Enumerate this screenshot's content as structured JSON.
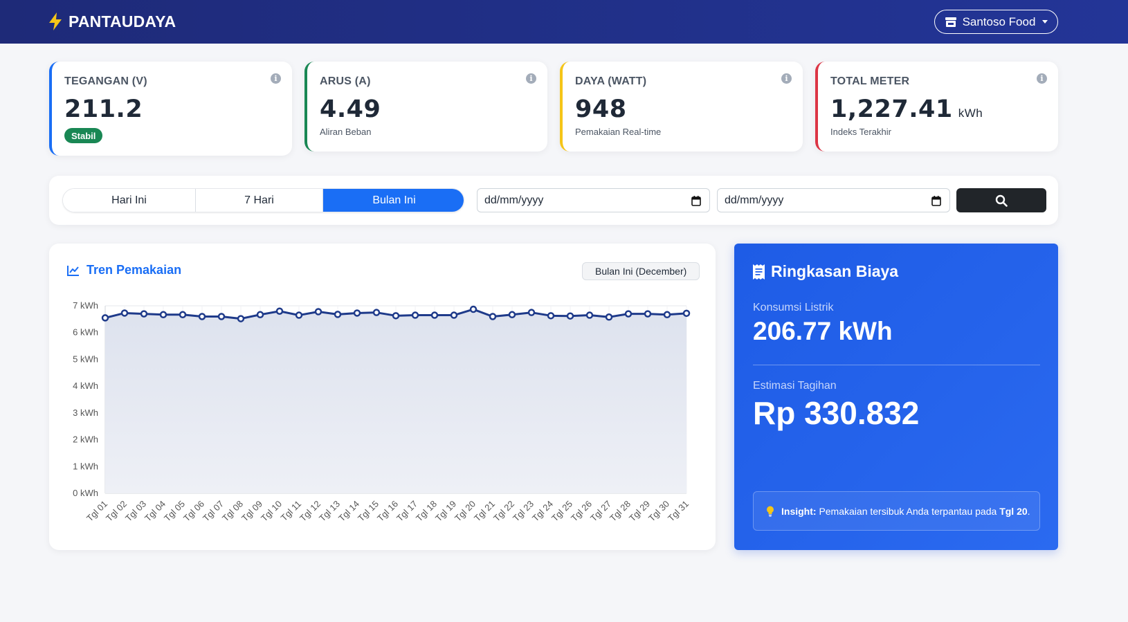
{
  "navbar": {
    "brand": "PANTAUDAYA",
    "brand_icon": "lightning-bolt-icon",
    "store_label": "Santoso Food",
    "store_icon": "store-icon"
  },
  "stats": [
    {
      "label": "TEGANGAN (V)",
      "value": "211.2",
      "badge": "Stabil",
      "accent": "#1a6ef5"
    },
    {
      "label": "ARUS (A)",
      "value": "4.49",
      "sub": "Aliran Beban",
      "accent": "#198754"
    },
    {
      "label": "DAYA (WATT)",
      "value": "948",
      "sub": "Pemakaian Real-time",
      "accent": "#f5c518"
    },
    {
      "label": "TOTAL METER",
      "value": "1,227.41",
      "unit": "kWh",
      "sub": "Indeks Terakhir",
      "accent": "#dc3545"
    }
  ],
  "info_glyph": "i",
  "filter": {
    "tabs": [
      "Hari Ini",
      "7 Hari",
      "Bulan Ini"
    ],
    "active_tab": "Bulan Ini",
    "start_date_placeholder": "dd/mm/yyyy",
    "end_date_placeholder": "dd/mm/yyyy",
    "search_icon": "search-icon"
  },
  "chart_card": {
    "title": "Tren Pemakaian",
    "period": "Bulan Ini (December)"
  },
  "chart_data": {
    "type": "area",
    "x": [
      "Tgl 01",
      "Tgl 02",
      "Tgl 03",
      "Tgl 04",
      "Tgl 05",
      "Tgl 06",
      "Tgl 07",
      "Tgl 08",
      "Tgl 09",
      "Tgl 10",
      "Tgl 11",
      "Tgl 12",
      "Tgl 13",
      "Tgl 14",
      "Tgl 15",
      "Tgl 16",
      "Tgl 17",
      "Tgl 18",
      "Tgl 19",
      "Tgl 20",
      "Tgl 21",
      "Tgl 22",
      "Tgl 23",
      "Tgl 24",
      "Tgl 25",
      "Tgl 26",
      "Tgl 27",
      "Tgl 28",
      "Tgl 29",
      "Tgl 30",
      "Tgl 31"
    ],
    "values": [
      6.55,
      6.73,
      6.7,
      6.67,
      6.67,
      6.6,
      6.6,
      6.52,
      6.67,
      6.8,
      6.65,
      6.78,
      6.68,
      6.73,
      6.75,
      6.63,
      6.65,
      6.65,
      6.65,
      6.87,
      6.6,
      6.67,
      6.75,
      6.63,
      6.62,
      6.65,
      6.58,
      6.7,
      6.7,
      6.67,
      6.72
    ],
    "yticks": [
      "0 kWh",
      "1 kWh",
      "2 kWh",
      "3 kWh",
      "4 kWh",
      "5 kWh",
      "6 kWh",
      "7 kWh"
    ],
    "ylim": [
      0,
      7
    ],
    "grid": true,
    "line_color": "#1e3a8a",
    "fill_color": "#dde2ee"
  },
  "summary": {
    "title": "Ringkasan Biaya",
    "title_icon": "receipt-icon",
    "consumption_label": "Konsumsi Listrik",
    "consumption_value": "206.77 kWh",
    "bill_label": "Estimasi Tagihan",
    "bill_value": "Rp 330.832",
    "insight_label": "Insight:",
    "insight_text": "Pemakaian tersibuk Anda terpantau pada",
    "insight_day": "Tgl 20",
    "insight_end": "."
  }
}
